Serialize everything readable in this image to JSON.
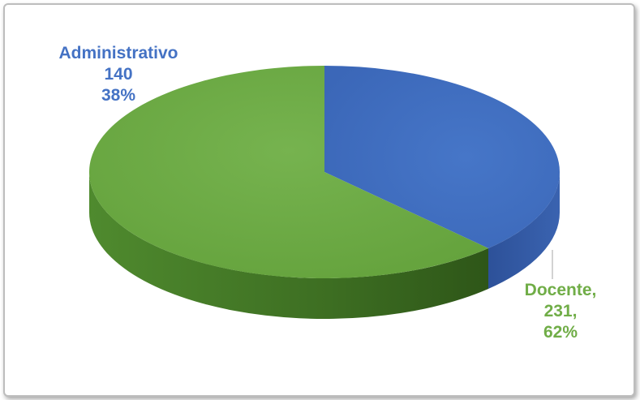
{
  "chart_data": {
    "type": "pie",
    "title": "",
    "categories": [
      "Administrativo",
      "Docente"
    ],
    "values": [
      140,
      231
    ],
    "percentages": [
      38,
      62
    ],
    "labels": {
      "Administrativo": [
        "Administrativo",
        "140",
        "38%"
      ],
      "Docente": [
        "Docente,",
        "231,",
        "62%"
      ]
    },
    "colors": {
      "Administrativo": "#4472c4",
      "Docente": "#70ad47"
    },
    "style": "3d"
  }
}
